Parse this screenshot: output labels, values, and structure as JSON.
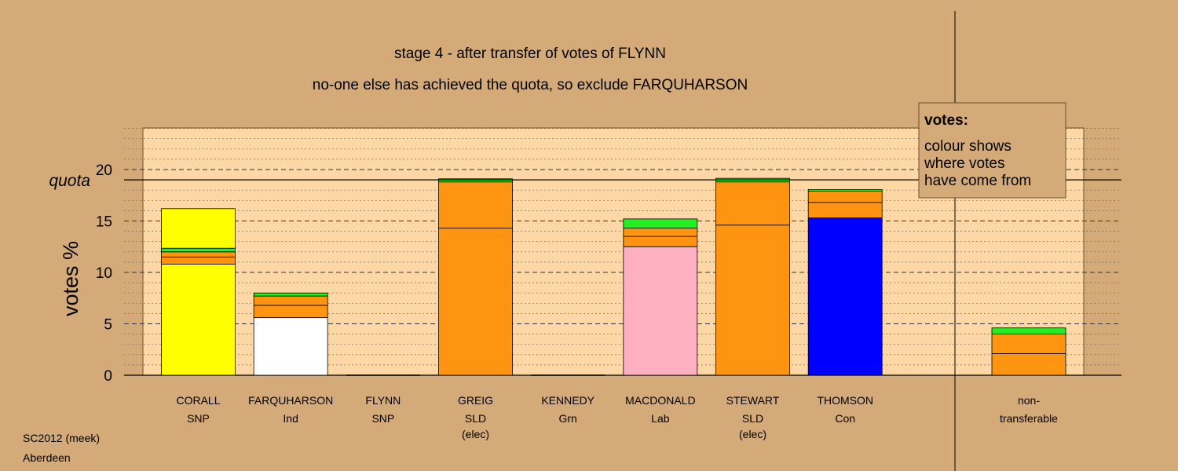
{
  "chart_data": {
    "type": "bar",
    "stacked": true,
    "title": "stage 4 - after transfer of votes of FLYNN",
    "subtitle": "no-one else has achieved the quota, so exclude FARQUHARSON",
    "ylabel": "votes %",
    "ylim": [
      0,
      24
    ],
    "yticks": [
      0,
      5,
      10,
      15,
      20
    ],
    "quota": 19.0,
    "quota_label": "quota",
    "grid": true,
    "legend": {
      "title": "votes:",
      "lines": [
        "colour shows",
        "where votes",
        "have come from"
      ],
      "placement": "top-right"
    },
    "colors": {
      "background": "#d4aa78",
      "plot_area": "#fdd8a6",
      "SNP": "#ffff00",
      "Ind": "#ffffff",
      "SLD": "#ff9410",
      "Lab": "#ffb0c0",
      "Con": "#0000ff",
      "Grn": "#22ee22",
      "transfer": "#ff9410"
    },
    "candidates": [
      {
        "name": "CORALL",
        "party": "SNP",
        "note": "",
        "segments": [
          {
            "value": 10.8,
            "color": "#ffff00"
          },
          {
            "value": 0.7,
            "color": "#ff9410"
          },
          {
            "value": 0.5,
            "color": "#ff9410"
          },
          {
            "value": 0.35,
            "color": "#22ee22"
          },
          {
            "value": 3.85,
            "color": "#ffff00"
          }
        ]
      },
      {
        "name": "FARQUHARSON",
        "party": "Ind",
        "note": "",
        "segments": [
          {
            "value": 5.6,
            "color": "#ffffff"
          },
          {
            "value": 1.2,
            "color": "#ff9410"
          },
          {
            "value": 0.9,
            "color": "#ff9410"
          },
          {
            "value": 0.3,
            "color": "#22ee22"
          }
        ]
      },
      {
        "name": "FLYNN",
        "party": "SNP",
        "note": "",
        "segments": []
      },
      {
        "name": "GREIG",
        "party": "SLD",
        "note": "(elec)",
        "segments": [
          {
            "value": 14.3,
            "color": "#ff9410"
          },
          {
            "value": 4.5,
            "color": "#ff9410"
          },
          {
            "value": 0.3,
            "color": "#22ee22"
          }
        ]
      },
      {
        "name": "KENNEDY",
        "party": "Grn",
        "note": "",
        "segments": []
      },
      {
        "name": "MACDONALD",
        "party": "Lab",
        "note": "",
        "segments": [
          {
            "value": 12.5,
            "color": "#ffb0c0"
          },
          {
            "value": 1.0,
            "color": "#ff9410"
          },
          {
            "value": 0.8,
            "color": "#ff9410"
          },
          {
            "value": 0.9,
            "color": "#22ee22"
          }
        ]
      },
      {
        "name": "STEWART",
        "party": "SLD",
        "note": "(elec)",
        "segments": [
          {
            "value": 14.6,
            "color": "#ff9410"
          },
          {
            "value": 4.2,
            "color": "#ff9410"
          },
          {
            "value": 0.35,
            "color": "#22ee22"
          }
        ]
      },
      {
        "name": "THOMSON",
        "party": "Con",
        "note": "",
        "segments": [
          {
            "value": 15.3,
            "color": "#0000ff"
          },
          {
            "value": 1.5,
            "color": "#ff9410"
          },
          {
            "value": 1.1,
            "color": "#ff9410"
          },
          {
            "value": 0.15,
            "color": "#22ee22"
          }
        ]
      }
    ],
    "nontransferable": {
      "label_line1": "non-",
      "label_line2": "transferable",
      "segments": [
        {
          "value": 2.1,
          "color": "#ff9410"
        },
        {
          "value": 1.9,
          "color": "#ff9410"
        },
        {
          "value": 0.6,
          "color": "#22ee22"
        }
      ]
    }
  },
  "footer": {
    "line1": "SC2012 (meek)",
    "line2": "Aberdeen"
  }
}
